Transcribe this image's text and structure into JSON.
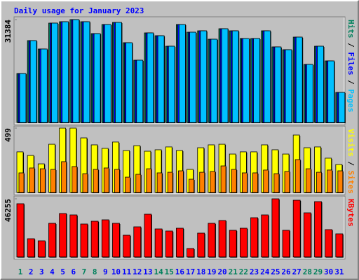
{
  "title": "Daily usage for January 2023",
  "legend_separator": "/",
  "categories": [
    "1",
    "2",
    "3",
    "4",
    "5",
    "6",
    "7",
    "8",
    "9",
    "10",
    "11",
    "12",
    "13",
    "14",
    "15",
    "16",
    "17",
    "18",
    "19",
    "20",
    "21",
    "22",
    "23",
    "24",
    "25",
    "26",
    "27",
    "28",
    "29",
    "30",
    "31"
  ],
  "category_colors": [
    "#00805C",
    "#0000FF",
    "#0000FF",
    "#0000FF",
    "#0000FF",
    "#0000FF",
    "#00805C",
    "#00805C",
    "#0000FF",
    "#0000FF",
    "#0000FF",
    "#0000FF",
    "#0000FF",
    "#00805C",
    "#00805C",
    "#0000FF",
    "#0000FF",
    "#0000FF",
    "#0000FF",
    "#0000FF",
    "#00805C",
    "#00805C",
    "#0000FF",
    "#0000FF",
    "#0000FF",
    "#0000FF",
    "#0000FF",
    "#00805C",
    "#00805C",
    "#0000FF",
    "#0000FF"
  ],
  "chart_data": [
    {
      "type": "bar",
      "ylim": [
        0,
        31384
      ],
      "yticks": [
        31384
      ],
      "series": [
        {
          "name": "Hits",
          "color": "#00805C",
          "values": [
            14945,
            24980,
            22417,
            30317,
            30743,
            31384,
            30743,
            27114,
            29890,
            30530,
            24339,
            19001,
            27328,
            26474,
            23271,
            29890,
            27541,
            27968,
            25406,
            28609,
            27968,
            25620,
            25620,
            27968,
            23058,
            22204,
            26047,
            17720,
            23271,
            18788,
            9180
          ]
        },
        {
          "name": "Files",
          "color": "#0000FF",
          "values": [
            14945,
            24980,
            22417,
            30317,
            30743,
            31384,
            30743,
            27114,
            29890,
            30530,
            24339,
            19001,
            27328,
            26474,
            23271,
            29890,
            27541,
            27968,
            25406,
            28609,
            27968,
            25620,
            25620,
            27968,
            23058,
            22204,
            26047,
            17720,
            23271,
            18788,
            9180
          ]
        },
        {
          "name": "Pages",
          "color": "#00C0FF",
          "values": [
            14945,
            24980,
            22417,
            30317,
            30743,
            31384,
            30743,
            27114,
            29890,
            30530,
            24339,
            19001,
            27328,
            26474,
            23271,
            29890,
            27541,
            27968,
            25406,
            28609,
            27968,
            25620,
            25620,
            27968,
            23058,
            22204,
            26047,
            17720,
            23271,
            18788,
            9180
          ]
        }
      ]
    },
    {
      "type": "bar",
      "ylim": [
        0,
        499
      ],
      "yticks": [
        499
      ],
      "series": [
        {
          "name": "Visits",
          "color": "#FFFF00",
          "values": [
            315,
            287,
            222,
            374,
            499,
            499,
            423,
            369,
            342,
            391,
            325,
            363,
            320,
            331,
            353,
            325,
            179,
            347,
            369,
            374,
            298,
            315,
            315,
            369,
            331,
            298,
            445,
            347,
            353,
            266,
            217
          ]
        },
        {
          "name": "Sites",
          "color": "#FF8000",
          "values": [
            152,
            190,
            184,
            179,
            239,
            201,
            146,
            179,
            190,
            179,
            119,
            141,
            184,
            152,
            157,
            168,
            103,
            157,
            163,
            206,
            179,
            152,
            152,
            174,
            146,
            163,
            255,
            184,
            157,
            174,
            168
          ]
        }
      ]
    },
    {
      "type": "bar",
      "ylim": [
        0,
        46255
      ],
      "yticks": [
        46255
      ],
      "series": [
        {
          "name": "KBytes",
          "color": "#FF0000",
          "values": [
            42355,
            14489,
            12818,
            26750,
            34553,
            33438,
            26193,
            28422,
            29537,
            26750,
            17276,
            23963,
            33996,
            22292,
            20620,
            22849,
            6687,
            18948,
            26750,
            28980,
            21177,
            22849,
            31208,
            33438,
            46255,
            21177,
            45141,
            35109,
            44026,
            21734,
            18390
          ]
        }
      ]
    }
  ]
}
